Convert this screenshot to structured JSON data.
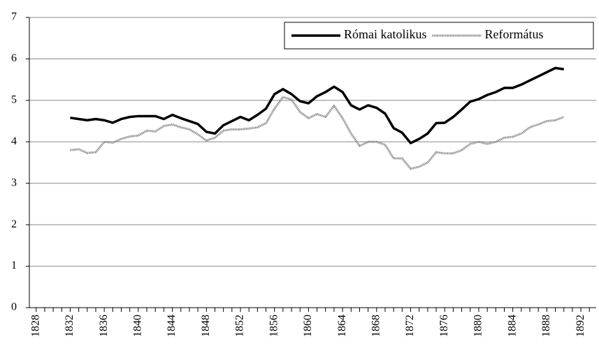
{
  "chart_data": {
    "type": "line",
    "x": [
      1832,
      1833,
      1834,
      1835,
      1836,
      1837,
      1838,
      1839,
      1840,
      1841,
      1842,
      1843,
      1844,
      1845,
      1846,
      1847,
      1848,
      1849,
      1850,
      1851,
      1852,
      1853,
      1854,
      1855,
      1856,
      1857,
      1858,
      1859,
      1860,
      1861,
      1862,
      1863,
      1864,
      1865,
      1866,
      1867,
      1868,
      1869,
      1870,
      1871,
      1872,
      1873,
      1874,
      1875,
      1876,
      1877,
      1878,
      1879,
      1880,
      1881,
      1882,
      1883,
      1884,
      1885,
      1886,
      1887,
      1888,
      1889,
      1890
    ],
    "series": [
      {
        "name": "Római katolikus",
        "color": "#000000",
        "values": [
          4.58,
          4.55,
          4.52,
          4.55,
          4.52,
          4.46,
          4.55,
          4.6,
          4.62,
          4.62,
          4.62,
          4.55,
          4.65,
          4.57,
          4.5,
          4.43,
          4.24,
          4.2,
          4.4,
          4.5,
          4.6,
          4.52,
          4.65,
          4.8,
          5.15,
          5.27,
          5.15,
          4.98,
          4.93,
          5.1,
          5.2,
          5.33,
          5.2,
          4.88,
          4.78,
          4.88,
          4.82,
          4.68,
          4.33,
          4.22,
          3.97,
          4.07,
          4.2,
          4.45,
          4.46,
          4.6,
          4.78,
          4.97,
          5.03,
          5.13,
          5.2,
          5.3,
          5.3,
          5.38,
          5.48,
          5.58,
          5.68,
          5.78,
          5.75
        ]
      },
      {
        "name": "Református",
        "color": "#8c8c8c",
        "values": [
          3.8,
          3.82,
          3.73,
          3.75,
          4.0,
          3.98,
          4.07,
          4.13,
          4.15,
          4.27,
          4.25,
          4.38,
          4.42,
          4.35,
          4.3,
          4.18,
          4.03,
          4.1,
          4.27,
          4.3,
          4.3,
          4.32,
          4.35,
          4.45,
          4.8,
          5.08,
          5.02,
          4.72,
          4.57,
          4.67,
          4.6,
          4.87,
          4.57,
          4.2,
          3.9,
          4.0,
          4.0,
          3.93,
          3.6,
          3.6,
          3.35,
          3.4,
          3.5,
          3.75,
          3.72,
          3.72,
          3.8,
          3.95,
          4.0,
          3.95,
          4.0,
          4.1,
          4.12,
          4.2,
          4.35,
          4.42,
          4.5,
          4.52,
          4.6
        ]
      }
    ],
    "xlim": [
      1827.2,
      1893.8
    ],
    "xticks": [
      1828,
      1832,
      1836,
      1840,
      1844,
      1848,
      1852,
      1856,
      1860,
      1864,
      1868,
      1872,
      1876,
      1880,
      1884,
      1888,
      1892
    ],
    "ylim": [
      0,
      7
    ],
    "yticks": [
      0,
      1,
      2,
      3,
      4,
      5,
      6,
      7
    ],
    "grid": true,
    "legend": "top-right"
  }
}
